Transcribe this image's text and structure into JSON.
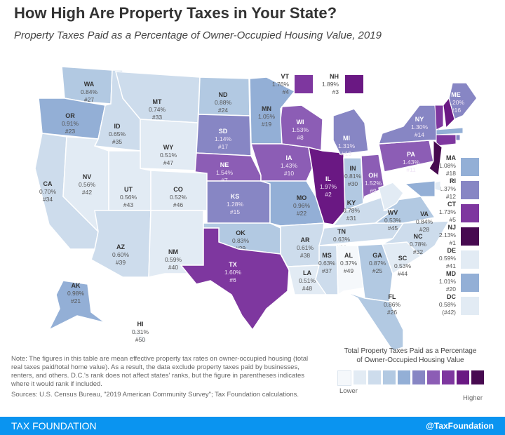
{
  "title": "How High Are Property Taxes in Your State?",
  "subtitle": "Property Taxes Paid as a Percentage of Owner-Occupied Housing Value, 2019",
  "states": [
    {
      "abbr": "WA",
      "rate": "0.84%",
      "rank": "#27",
      "value": 0.84
    },
    {
      "abbr": "OR",
      "rate": "0.91%",
      "rank": "#23",
      "value": 0.91
    },
    {
      "abbr": "CA",
      "rate": "0.70%",
      "rank": "#34",
      "value": 0.7
    },
    {
      "abbr": "ID",
      "rate": "0.65%",
      "rank": "#35",
      "value": 0.65
    },
    {
      "abbr": "NV",
      "rate": "0.56%",
      "rank": "#42",
      "value": 0.56
    },
    {
      "abbr": "MT",
      "rate": "0.74%",
      "rank": "#33",
      "value": 0.74
    },
    {
      "abbr": "WY",
      "rate": "0.51%",
      "rank": "#47",
      "value": 0.51
    },
    {
      "abbr": "UT",
      "rate": "0.56%",
      "rank": "#43",
      "value": 0.56
    },
    {
      "abbr": "CO",
      "rate": "0.52%",
      "rank": "#46",
      "value": 0.52
    },
    {
      "abbr": "AZ",
      "rate": "0.60%",
      "rank": "#39",
      "value": 0.6
    },
    {
      "abbr": "NM",
      "rate": "0.59%",
      "rank": "#40",
      "value": 0.59
    },
    {
      "abbr": "ND",
      "rate": "0.88%",
      "rank": "#24",
      "value": 0.88
    },
    {
      "abbr": "SD",
      "rate": "1.14%",
      "rank": "#17",
      "value": 1.14
    },
    {
      "abbr": "NE",
      "rate": "1.54%",
      "rank": "#7",
      "value": 1.54
    },
    {
      "abbr": "KS",
      "rate": "1.28%",
      "rank": "#15",
      "value": 1.28
    },
    {
      "abbr": "OK",
      "rate": "0.83%",
      "rank": "#29",
      "value": 0.83
    },
    {
      "abbr": "TX",
      "rate": "1.60%",
      "rank": "#6",
      "value": 1.6
    },
    {
      "abbr": "MN",
      "rate": "1.05%",
      "rank": "#19",
      "value": 1.05
    },
    {
      "abbr": "IA",
      "rate": "1.43%",
      "rank": "#10",
      "value": 1.43
    },
    {
      "abbr": "MO",
      "rate": "0.96%",
      "rank": "#22",
      "value": 0.96
    },
    {
      "abbr": "AR",
      "rate": "0.61%",
      "rank": "#38",
      "value": 0.61
    },
    {
      "abbr": "LA",
      "rate": "0.51%",
      "rank": "#48",
      "value": 0.51
    },
    {
      "abbr": "WI",
      "rate": "1.53%",
      "rank": "#8",
      "value": 1.53
    },
    {
      "abbr": "IL",
      "rate": "1.97%",
      "rank": "#2",
      "value": 1.97
    },
    {
      "abbr": "MI",
      "rate": "1.31%",
      "rank": "#13",
      "value": 1.31
    },
    {
      "abbr": "IN",
      "rate": "0.81%",
      "rank": "#30",
      "value": 0.81
    },
    {
      "abbr": "OH",
      "rate": "1.52%",
      "rank": "#9",
      "value": 1.52
    },
    {
      "abbr": "KY",
      "rate": "0.78%",
      "rank": "#31",
      "value": 0.78
    },
    {
      "abbr": "TN",
      "rate": "0.63%",
      "rank": "#36",
      "value": 0.63
    },
    {
      "abbr": "MS",
      "rate": "0.63%",
      "rank": "#37",
      "value": 0.63
    },
    {
      "abbr": "AL",
      "rate": "0.37%",
      "rank": "#49",
      "value": 0.37
    },
    {
      "abbr": "GA",
      "rate": "0.87%",
      "rank": "#25",
      "value": 0.87
    },
    {
      "abbr": "FL",
      "rate": "0.86%",
      "rank": "#26",
      "value": 0.86
    },
    {
      "abbr": "SC",
      "rate": "0.53%",
      "rank": "#44",
      "value": 0.53
    },
    {
      "abbr": "NC",
      "rate": "0.78%",
      "rank": "#32",
      "value": 0.78
    },
    {
      "abbr": "VA",
      "rate": "0.84%",
      "rank": "#28",
      "value": 0.84
    },
    {
      "abbr": "WV",
      "rate": "0.53%",
      "rank": "#45",
      "value": 0.53
    },
    {
      "abbr": "PA",
      "rate": "1.43%",
      "rank": "#11",
      "value": 1.43
    },
    {
      "abbr": "NY",
      "rate": "1.30%",
      "rank": "#14",
      "value": 1.3
    },
    {
      "abbr": "ME",
      "rate": "1.20%",
      "rank": "#16",
      "value": 1.2
    },
    {
      "abbr": "AK",
      "rate": "0.98%",
      "rank": "#21",
      "value": 0.98
    },
    {
      "abbr": "HI",
      "rate": "0.31%",
      "rank": "#50",
      "value": 0.31
    },
    {
      "abbr": "VT",
      "rate": "1.76%",
      "rank": "#4",
      "value": 1.76
    },
    {
      "abbr": "NH",
      "rate": "1.89%",
      "rank": "#3",
      "value": 1.89
    },
    {
      "abbr": "MA",
      "rate": "1.08%",
      "rank": "#18",
      "value": 1.08
    },
    {
      "abbr": "RI",
      "rate": "1.37%",
      "rank": "#12",
      "value": 1.37
    },
    {
      "abbr": "CT",
      "rate": "1.73%",
      "rank": "#5",
      "value": 1.73
    },
    {
      "abbr": "NJ",
      "rate": "2.13%",
      "rank": "#1",
      "value": 2.13
    },
    {
      "abbr": "DE",
      "rate": "0.59%",
      "rank": "#41",
      "value": 0.59
    },
    {
      "abbr": "MD",
      "rate": "1.01%",
      "rank": "#20",
      "value": 1.01
    },
    {
      "abbr": "DC",
      "rate": "0.58%",
      "rank": "(#42)",
      "value": 0.58
    }
  ],
  "legend": {
    "title_line1": "Total Property Taxes Paid as a Percentage",
    "title_line2": "of Owner-Occupied Housing Value",
    "low_label": "Lower",
    "high_label": "Higher",
    "colors": [
      "#f5f8fb",
      "#e2ebf4",
      "#cddcec",
      "#b2c9e2",
      "#93afd6",
      "#8786c4",
      "#8c5db5",
      "#7e379f",
      "#6a1883",
      "#470a50"
    ]
  },
  "note": "Note: The figures in this table are mean effective property tax rates on owner-occupied housing (total real taxes paid/total home value). As a result, the data exclude property taxes paid by businesses, renters, and others. D.C.'s rank does not affect states' ranks, but the figure in parentheses indicates where it would rank if included.",
  "sources": "Sources: U.S. Census Bureau, \"2019 American Community Survey\"; Tax Foundation calculations.",
  "footer": {
    "brand": "TAX FOUNDATION",
    "handle": "@TaxFoundation"
  }
}
